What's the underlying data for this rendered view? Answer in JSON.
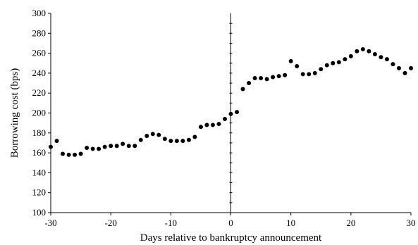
{
  "chart_data": {
    "type": "scatter",
    "title": "",
    "xlabel": "Days relative to bankruptcy announcement",
    "ylabel": "Borrowing cost (bps)",
    "xlim": [
      -30,
      30
    ],
    "ylim": [
      100,
      300
    ],
    "xticks": [
      -30,
      -20,
      -10,
      0,
      10,
      20,
      30
    ],
    "yticks": [
      100,
      120,
      140,
      160,
      180,
      200,
      220,
      240,
      260,
      280,
      300
    ],
    "grid": false,
    "legend": "none",
    "marker_color": "#000000",
    "series": [
      {
        "x": [
          -30,
          -29,
          -28,
          -27,
          -26,
          -25,
          -24,
          -23,
          -22,
          -21,
          -20,
          -19,
          -18,
          -17,
          -16,
          -15,
          -14,
          -13,
          -12,
          -11,
          -10,
          -9,
          -8,
          -7,
          -6,
          -5,
          -4,
          -3,
          -2,
          -1,
          0,
          1,
          2,
          3,
          4,
          5,
          6,
          7,
          8,
          9,
          10,
          11,
          12,
          13,
          14,
          15,
          16,
          17,
          18,
          19,
          20,
          21,
          22,
          23,
          24,
          25,
          26,
          27,
          28,
          29,
          30
        ],
        "y": [
          166,
          172,
          159,
          158,
          158,
          159,
          165,
          164,
          164,
          166,
          167,
          167,
          169,
          167,
          167,
          173,
          177,
          179,
          178,
          174,
          172,
          172,
          172,
          173,
          176,
          186,
          188,
          188,
          189,
          194,
          199,
          201,
          224,
          230,
          235,
          235,
          234,
          236,
          237,
          238,
          252,
          247,
          239,
          239,
          240,
          244,
          248,
          250,
          251,
          254,
          257,
          262,
          264,
          262,
          259,
          256,
          254,
          249,
          245,
          240,
          245
        ]
      }
    ]
  }
}
